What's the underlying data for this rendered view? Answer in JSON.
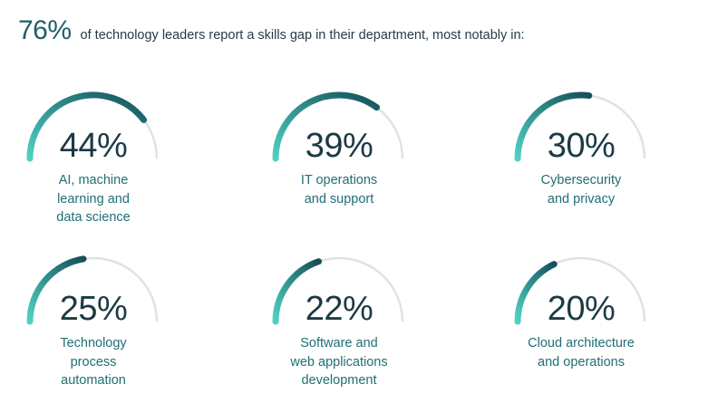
{
  "header": {
    "stat": "76%",
    "text": "of technology leaders report a skills gap in their department, most notably in:"
  },
  "colors": {
    "track": "#dde3e6",
    "arc_start": "#4fd1c5",
    "arc_end": "#15505a",
    "value_text": "#1b3a44",
    "label_text": "#1f6f74",
    "headline": "#1f5f68"
  },
  "chart_data": {
    "type": "gauge",
    "title": "",
    "unit": "%",
    "categories": [
      "AI, machine learning and data science",
      "IT operations and support",
      "Cybersecurity and privacy",
      "Technology process automation",
      "Software and web applications development",
      "Cloud architecture and operations"
    ],
    "values": [
      44,
      39,
      30,
      25,
      22,
      20
    ],
    "max": 100
  },
  "gauges": [
    {
      "value_label": "44%",
      "label_lines": [
        "AI, machine",
        "learning and",
        "data science"
      ]
    },
    {
      "value_label": "39%",
      "label_lines": [
        "IT operations",
        "and support"
      ]
    },
    {
      "value_label": "30%",
      "label_lines": [
        "Cybersecurity",
        "and privacy"
      ]
    },
    {
      "value_label": "25%",
      "label_lines": [
        "Technology",
        "process",
        "automation"
      ]
    },
    {
      "value_label": "22%",
      "label_lines": [
        "Software and",
        "web applications",
        "development"
      ]
    },
    {
      "value_label": "20%",
      "label_lines": [
        "Cloud architecture",
        "and operations"
      ]
    }
  ]
}
